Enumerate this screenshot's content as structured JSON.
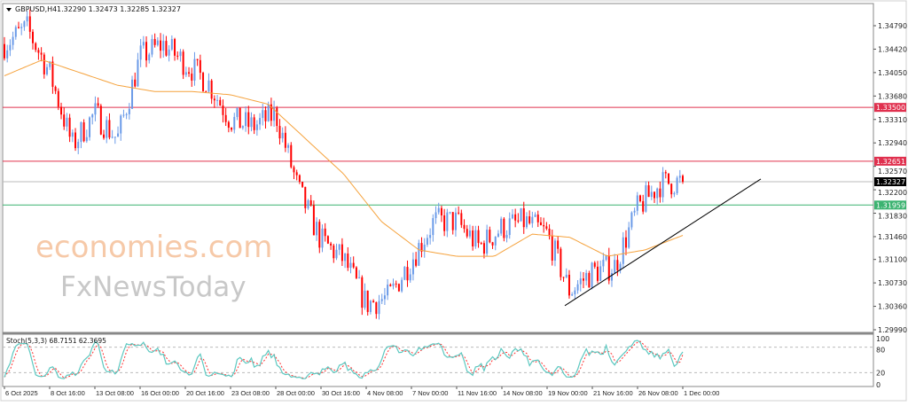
{
  "header": {
    "symbol_timeframe": "GBPUSD,H4",
    "ohlc": "1.32290 1.32473 1.32285 1.32327"
  },
  "watermark": {
    "line1": "economies.com",
    "line2": "FxNewsToday"
  },
  "colors": {
    "bull_candle": "#6A9AE8",
    "bear_candle": "#FF0000",
    "moving_average": "#F5A23C",
    "resistance_line": "#E0304E",
    "support_line": "#3CB371",
    "current_price": "#000000",
    "stoch_main": "#5CC8C0",
    "stoch_signal": "#FF3030"
  },
  "chart_data": [
    {
      "type": "candlestick",
      "title": "GBPUSD,H4",
      "x_tick_labels": [
        "6 Oct 2025",
        "8 Oct 16:00",
        "13 Oct 08:00",
        "16 Oct 00:00",
        "20 Oct 16:00",
        "23 Oct 08:00",
        "28 Oct 00:00",
        "30 Oct 16:00",
        "4 Nov 08:00",
        "7 Nov 00:00",
        "11 Nov 16:00",
        "14 Nov 08:00",
        "19 Nov 00:00",
        "21 Nov 16:00",
        "26 Nov 08:00",
        "1 Dec 00:00"
      ],
      "y_tick_labels": [
        "1.34790",
        "1.34420",
        "1.34050",
        "1.33680",
        "1.33310",
        "1.32940",
        "1.32570",
        "1.32200",
        "1.31830",
        "1.31460",
        "1.31100",
        "1.30730",
        "1.30360",
        "1.29990"
      ],
      "ylim": [
        1.2999,
        1.351
      ],
      "approx_close_path": [
        1.345,
        1.3475,
        1.3405,
        1.329,
        1.334,
        1.33,
        1.343,
        1.345,
        1.342,
        1.339,
        1.333,
        1.332,
        1.334,
        1.322,
        1.314,
        1.311,
        1.304,
        1.305,
        1.311,
        1.317,
        1.317,
        1.313,
        1.316,
        1.317,
        1.315,
        1.306,
        1.309,
        1.31,
        1.319,
        1.323,
        1.32327
      ],
      "moving_average_path": [
        1.34,
        1.3425,
        1.3405,
        1.3385,
        1.3375,
        1.3375,
        1.337,
        1.3355,
        1.33,
        1.3245,
        1.317,
        1.3125,
        1.3115,
        1.3115,
        1.315,
        1.3145,
        1.3115,
        1.3125,
        1.3148
      ],
      "horizontal_levels": [
        {
          "label": "1.33500",
          "value": 1.335,
          "kind": "resistance"
        },
        {
          "label": "1.32651",
          "value": 1.32651,
          "kind": "resistance"
        },
        {
          "label": "1.32327",
          "value": 1.32327,
          "kind": "current"
        },
        {
          "label": "1.31959",
          "value": 1.31959,
          "kind": "support"
        }
      ],
      "trendline": {
        "from": {
          "time": "19 Nov 00:00",
          "price": 1.3037
        },
        "to_price": 1.3237
      }
    },
    {
      "type": "line",
      "title": "Stoch(5,3,3) 68.7151 62.3695",
      "ylim": [
        0,
        100
      ],
      "y_tick_labels": [
        "100",
        "80",
        "20",
        "0"
      ],
      "levels": [
        80,
        20
      ],
      "last_main": 68.7151,
      "last_signal": 62.3695
    }
  ]
}
